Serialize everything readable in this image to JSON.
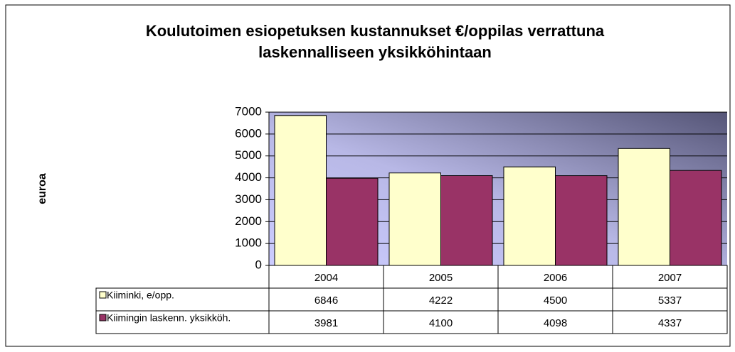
{
  "chart_data": {
    "type": "bar",
    "title": [
      "Koulutoimen esiopetuksen kustannukset €/oppilas verrattuna",
      "laskennalliseen yksikköhintaan"
    ],
    "y_label": "euroa",
    "categories": [
      "2004",
      "2005",
      "2006",
      "2007"
    ],
    "series": [
      {
        "name": "Kiiminki, e/opp.",
        "color": "#ffffcc",
        "values": [
          6846,
          4222,
          4500,
          5337
        ]
      },
      {
        "name": "Kiimingin laskenn. yksikköh.",
        "color": "#993366",
        "values": [
          3981,
          4100,
          4098,
          4337
        ]
      }
    ],
    "ylim": [
      0,
      7000
    ],
    "yticks": [
      0,
      1000,
      2000,
      3000,
      4000,
      5000,
      6000,
      7000
    ],
    "grid": true,
    "legend": "table"
  }
}
